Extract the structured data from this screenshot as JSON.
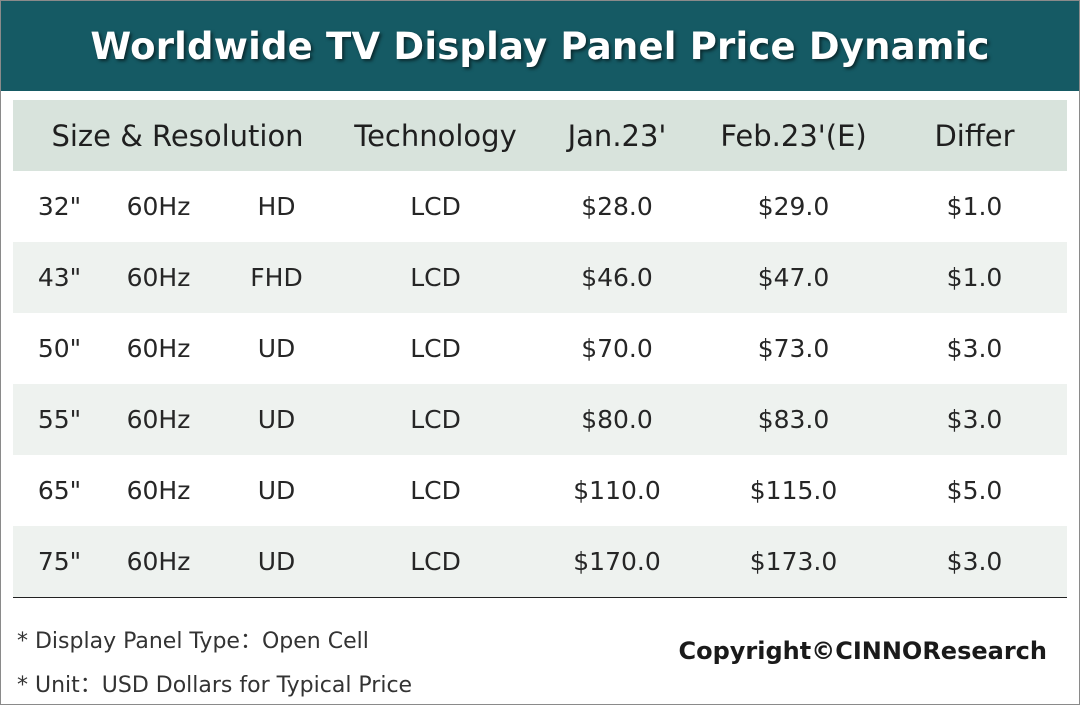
{
  "title": "Worldwide TV Display Panel Price Dynamic",
  "chart_data": {
    "type": "table",
    "columns": [
      "Size & Resolution",
      "Technology",
      "Jan.23'",
      "Feb.23'(E)",
      "Differ"
    ],
    "rows": [
      {
        "size": "32\"",
        "refresh": "60Hz",
        "resolution": "HD",
        "technology": "LCD",
        "jan": "$28.0",
        "feb": "$29.0",
        "differ": "$1.0"
      },
      {
        "size": "43\"",
        "refresh": "60Hz",
        "resolution": "FHD",
        "technology": "LCD",
        "jan": "$46.0",
        "feb": "$47.0",
        "differ": "$1.0"
      },
      {
        "size": "50\"",
        "refresh": "60Hz",
        "resolution": "UD",
        "technology": "LCD",
        "jan": "$70.0",
        "feb": "$73.0",
        "differ": "$3.0"
      },
      {
        "size": "55\"",
        "refresh": "60Hz",
        "resolution": "UD",
        "technology": "LCD",
        "jan": "$80.0",
        "feb": "$83.0",
        "differ": "$3.0"
      },
      {
        "size": "65\"",
        "refresh": "60Hz",
        "resolution": "UD",
        "technology": "LCD",
        "jan": "$110.0",
        "feb": "$115.0",
        "differ": "$5.0"
      },
      {
        "size": "75\"",
        "refresh": "60Hz",
        "resolution": "UD",
        "technology": "LCD",
        "jan": "$170.0",
        "feb": "$173.0",
        "differ": "$3.0"
      }
    ]
  },
  "notes": [
    "* Display Panel Type：Open Cell",
    "* Unit：USD Dollars for Typical Price"
  ],
  "copyright": "Copyright©CINNOResearch",
  "colors": {
    "title_bg": "#155a64",
    "header_bg": "#d8e3dc",
    "stripe_bg": "#eef2ef"
  }
}
